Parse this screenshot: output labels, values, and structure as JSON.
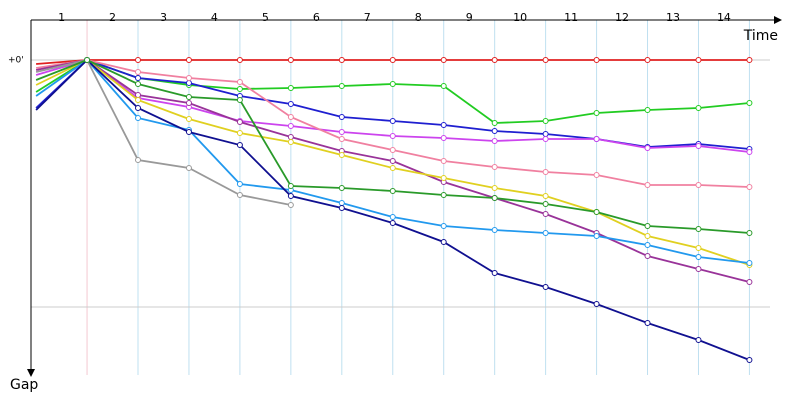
{
  "chart_data": {
    "type": "line",
    "x_label": "Time",
    "y_label": "Gap",
    "lap_labels": [
      "1",
      "2",
      "3",
      "4",
      "5",
      "6",
      "7",
      "8",
      "9",
      "10",
      "11",
      "12",
      "13",
      "14"
    ],
    "x": [
      0,
      1,
      2,
      3,
      4,
      5,
      6,
      7,
      8,
      9,
      10,
      11,
      12,
      13,
      14
    ],
    "xlim": [
      -0.1,
      14.6
    ],
    "ylim": [
      -40,
      315
    ],
    "yticks": [
      {
        "value": 0,
        "label": "+0'"
      }
    ],
    "ygrid": [
      247
    ],
    "grid": true,
    "series": [
      {
        "color": "#e02020",
        "values": [
          4,
          0,
          0,
          0,
          0,
          0,
          0,
          0,
          0,
          0,
          0,
          0,
          0,
          0,
          0
        ]
      },
      {
        "color": "#22cc22",
        "values": [
          32,
          0,
          18,
          25,
          29,
          28,
          26,
          24,
          26,
          63,
          61,
          53,
          50,
          48,
          43
        ]
      },
      {
        "color": "#1f1fd0",
        "values": [
          48,
          0,
          18,
          23,
          36,
          44,
          57,
          61,
          65,
          71,
          74,
          79,
          87,
          84,
          89
        ]
      },
      {
        "color": "#cc44ee",
        "values": [
          15,
          0,
          38,
          47,
          61,
          66,
          72,
          76,
          78,
          81,
          79,
          79,
          88,
          86,
          92
        ]
      },
      {
        "color": "#f080a0",
        "values": [
          8,
          0,
          12,
          18,
          22,
          57,
          79,
          90,
          101,
          107,
          112,
          115,
          125,
          125,
          127
        ]
      },
      {
        "color": "#993399",
        "values": [
          10,
          0,
          35,
          43,
          62,
          77,
          91,
          101,
          122,
          138,
          154,
          173,
          196,
          209,
          222
        ]
      },
      {
        "color": "#e0d020",
        "values": [
          25,
          0,
          40,
          59,
          73,
          82,
          95,
          108,
          118,
          128,
          136,
          152,
          176,
          188,
          205
        ]
      },
      {
        "color": "#2299ee",
        "values": [
          36,
          0,
          58,
          70,
          124,
          130,
          143,
          157,
          166,
          170,
          173,
          176,
          185,
          197,
          203
        ]
      },
      {
        "color": "#101090",
        "values": [
          50,
          0,
          48,
          72,
          85,
          136,
          148,
          163,
          182,
          213,
          227,
          244,
          263,
          280,
          300
        ]
      },
      {
        "color": "#999999",
        "values": [
          12,
          0,
          100,
          108,
          135,
          145,
          null,
          null,
          null,
          null,
          null,
          null,
          null,
          null,
          null
        ]
      },
      {
        "color": "#2a9a2a",
        "values": [
          20,
          0,
          24,
          37,
          40,
          126,
          128,
          131,
          135,
          138,
          144,
          152,
          166,
          169,
          173
        ]
      }
    ]
  }
}
